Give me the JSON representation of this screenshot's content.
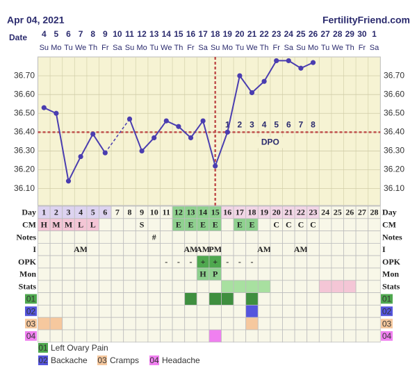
{
  "header": {
    "date": "Apr 04, 2021",
    "site": "FertilityFriend.com"
  },
  "chart_data": {
    "type": "line",
    "x_label": "Date",
    "categories": [
      "4",
      "5",
      "6",
      "7",
      "8",
      "9",
      "10",
      "11",
      "12",
      "13",
      "14",
      "15",
      "16",
      "17",
      "18",
      "19",
      "20",
      "21",
      "22",
      "23",
      "24",
      "25",
      "26",
      "27",
      "28",
      "29",
      "30",
      "1"
    ],
    "weekdays": [
      "Su",
      "Mo",
      "Tu",
      "We",
      "Th",
      "Fr",
      "Sa",
      "Su",
      "Mo",
      "Tu",
      "We",
      "Th",
      "Fr",
      "Sa",
      "Su",
      "Mo",
      "Tu",
      "We",
      "Th",
      "Fr",
      "Sa",
      "Su",
      "Mo",
      "Tu",
      "We",
      "Th",
      "Fr",
      "Sa"
    ],
    "values": [
      36.53,
      36.5,
      36.14,
      36.27,
      36.39,
      36.29,
      null,
      36.47,
      36.3,
      36.37,
      36.46,
      36.43,
      36.37,
      36.46,
      36.22,
      36.4,
      36.7,
      36.61,
      36.67,
      36.78,
      36.78,
      36.74,
      36.77,
      null,
      null,
      null,
      null,
      null
    ],
    "color": "#4a3db0",
    "ylim": [
      36.01,
      36.8
    ],
    "yticks": [
      {
        "value": 36.1,
        "label": "36.10"
      },
      {
        "value": 36.2,
        "label": "36.20"
      },
      {
        "value": 36.3,
        "label": "36.30"
      },
      {
        "value": 36.4,
        "label": "36.40"
      },
      {
        "value": 36.5,
        "label": "36.50"
      },
      {
        "value": 36.6,
        "label": "36.60"
      },
      {
        "value": 36.7,
        "label": "36.70"
      }
    ],
    "grid": true,
    "coverline": 36.4,
    "coverline_color": "#c0504d",
    "ovulation_index": 14,
    "dpo": [
      "1",
      "2",
      "3",
      "4",
      "5",
      "6",
      "7",
      "8"
    ],
    "dpo_label": "DPO"
  },
  "table": {
    "rows": [
      {
        "label": "Day",
        "cells": [
          1,
          2,
          3,
          4,
          5,
          6,
          7,
          8,
          9,
          10,
          11,
          12,
          13,
          14,
          15,
          16,
          17,
          18,
          19,
          20,
          21,
          22,
          23,
          24,
          25,
          26,
          27,
          28
        ],
        "colors": [
          "#ddd3f0",
          "#ddd3f0",
          "#ddd3f0",
          "#ddd3f0",
          "#ddd3f0",
          "#ddd3f0",
          null,
          null,
          null,
          null,
          null,
          "#8fd18f",
          "#8fd18f",
          "#8fd18f",
          "#8fd18f",
          "#f2d6e6",
          "#f2d6e6",
          "#f2d6e6",
          "#f2d6e6",
          "#f2d6e6",
          "#f2d6e6",
          "#f2d6e6",
          "#f2d6e6",
          null,
          null,
          null,
          null,
          null
        ]
      },
      {
        "label": "CM",
        "cells": [
          "H",
          "M",
          "M",
          "L",
          "L",
          null,
          null,
          null,
          "S",
          null,
          null,
          "E",
          "E",
          "E",
          "E",
          null,
          "E",
          "E",
          null,
          "C",
          "C",
          "C",
          "C",
          null,
          null,
          null,
          null,
          null
        ],
        "colors": [
          "#f4c6d6",
          "#f4c6d6",
          "#f4c6d6",
          "#f4c6d6",
          "#f4c6d6",
          null,
          null,
          null,
          null,
          null,
          null,
          "#8fd18f",
          "#8fd18f",
          "#8fd18f",
          "#8fd18f",
          null,
          "#8fd18f",
          "#8fd18f",
          null,
          null,
          null,
          null,
          null,
          null,
          null,
          null,
          null,
          null
        ]
      },
      {
        "label": "Notes",
        "cells": [
          null,
          null,
          null,
          null,
          null,
          null,
          null,
          null,
          null,
          "#",
          null,
          null,
          null,
          null,
          null,
          null,
          null,
          null,
          null,
          null,
          null,
          null,
          null,
          null,
          null,
          null,
          null,
          null
        ]
      },
      {
        "label": "I",
        "cells": [
          null,
          null,
          null,
          "AM",
          null,
          null,
          null,
          null,
          null,
          null,
          null,
          null,
          "AM",
          "AM",
          "PM",
          null,
          null,
          null,
          "AM",
          null,
          null,
          "AM",
          null,
          null,
          null,
          null,
          null,
          null
        ]
      },
      {
        "label": "OPK",
        "cells": [
          null,
          null,
          null,
          null,
          null,
          null,
          null,
          null,
          null,
          null,
          "-",
          "-",
          "-",
          "+",
          "+",
          "-",
          "-",
          "-",
          null,
          null,
          null,
          null,
          null,
          null,
          null,
          null,
          null,
          null
        ],
        "colors": [
          null,
          null,
          null,
          null,
          null,
          null,
          null,
          null,
          null,
          null,
          null,
          null,
          null,
          "#4fa84f",
          "#4fa84f",
          null,
          null,
          null,
          null,
          null,
          null,
          null,
          null,
          null,
          null,
          null,
          null,
          null
        ]
      },
      {
        "label": "Mon",
        "cells": [
          null,
          null,
          null,
          null,
          null,
          null,
          null,
          null,
          null,
          null,
          null,
          null,
          null,
          "H",
          "P",
          null,
          null,
          null,
          null,
          null,
          null,
          null,
          null,
          null,
          null,
          null,
          null,
          null
        ],
        "colors": [
          null,
          null,
          null,
          null,
          null,
          null,
          null,
          null,
          null,
          null,
          null,
          null,
          null,
          "#8fd18f",
          "#8fd18f",
          null,
          null,
          null,
          null,
          null,
          null,
          null,
          null,
          null,
          null,
          null,
          null,
          null
        ]
      },
      {
        "label": "Stats",
        "colors": [
          null,
          null,
          null,
          null,
          null,
          null,
          null,
          null,
          null,
          null,
          null,
          null,
          null,
          null,
          null,
          "#a8e0a0",
          "#a8e0a0",
          "#a8e0a0",
          "#a8e0a0",
          null,
          null,
          null,
          null,
          "#f4c6d6",
          "#f4c6d6",
          "#f4c6d6",
          null,
          null
        ]
      },
      {
        "label": "01",
        "label_color": "#4fa84f",
        "colors": [
          null,
          null,
          null,
          null,
          null,
          null,
          null,
          null,
          null,
          null,
          null,
          null,
          "#3f8f3f",
          null,
          "#3f8f3f",
          "#3f8f3f",
          null,
          "#3f8f3f",
          null,
          null,
          null,
          null,
          null,
          null,
          null,
          null,
          null,
          null
        ]
      },
      {
        "label": "02",
        "label_color": "#5555dd",
        "colors": [
          null,
          null,
          null,
          null,
          null,
          null,
          null,
          null,
          null,
          null,
          null,
          null,
          null,
          null,
          null,
          null,
          null,
          "#5555dd",
          null,
          null,
          null,
          null,
          null,
          null,
          null,
          null,
          null,
          null
        ]
      },
      {
        "label": "03",
        "label_color": "#f6c89e",
        "colors": [
          "#f6c89e",
          "#f6c89e",
          null,
          null,
          null,
          null,
          null,
          null,
          null,
          null,
          null,
          null,
          null,
          null,
          null,
          null,
          null,
          "#f6c89e",
          null,
          null,
          null,
          null,
          null,
          null,
          null,
          null,
          null,
          null
        ]
      },
      {
        "label": "04",
        "label_color": "#f080f0",
        "colors": [
          null,
          null,
          null,
          null,
          null,
          null,
          null,
          null,
          null,
          null,
          null,
          null,
          null,
          null,
          "#f080f0",
          null,
          null,
          null,
          null,
          null,
          null,
          null,
          null,
          null,
          null,
          null,
          null,
          null
        ]
      }
    ]
  },
  "legend": [
    "Left Ovary Pain",
    "Backache",
    "Cramps",
    "Headache"
  ]
}
